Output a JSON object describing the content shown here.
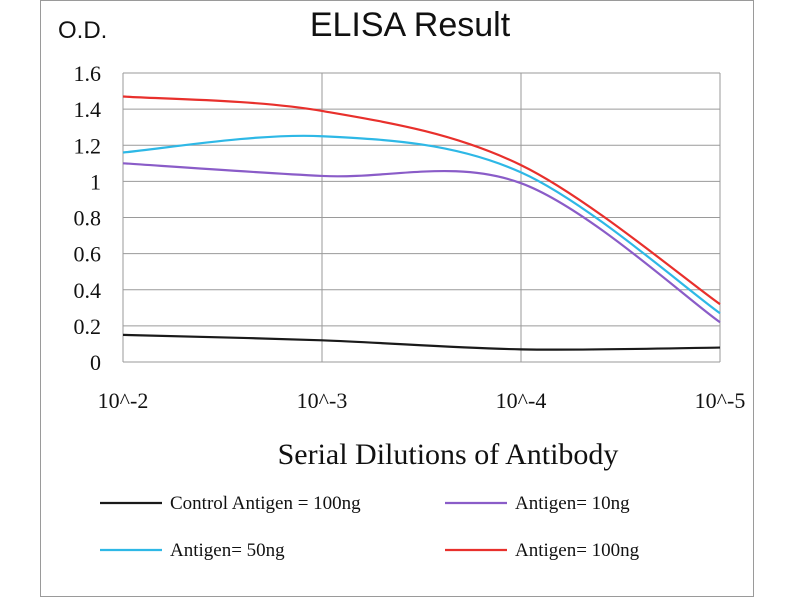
{
  "chart_data": {
    "type": "line",
    "title": "ELISA Result",
    "ylabel": "O.D.",
    "xlabel": "Serial Dilutions of Antibody",
    "categories": [
      "10^-2",
      "10^-3",
      "10^-4",
      "10^-5"
    ],
    "ylim": [
      0,
      1.6
    ],
    "yticks": [
      "0",
      "0.2",
      "0.4",
      "0.6",
      "0.8",
      "1",
      "1.2",
      "1.4",
      "1.6"
    ],
    "ytick_values": [
      0,
      0.2,
      0.4,
      0.6,
      0.8,
      1.0,
      1.2,
      1.4,
      1.6
    ],
    "grid": true,
    "legend_position": "bottom",
    "series": [
      {
        "name": "Control Antigen = 100ng",
        "color": "#1a1a1a",
        "values": [
          0.15,
          0.12,
          0.07,
          0.08
        ]
      },
      {
        "name": "Antigen= 10ng",
        "color": "#8a5cc8",
        "values": [
          1.1,
          1.03,
          0.99,
          0.22
        ]
      },
      {
        "name": "Antigen= 50ng",
        "color": "#2eb8e6",
        "values": [
          1.16,
          1.25,
          1.05,
          0.27
        ]
      },
      {
        "name": "Antigen= 100ng",
        "color": "#e8302c",
        "values": [
          1.47,
          1.39,
          1.09,
          0.32
        ]
      }
    ]
  }
}
